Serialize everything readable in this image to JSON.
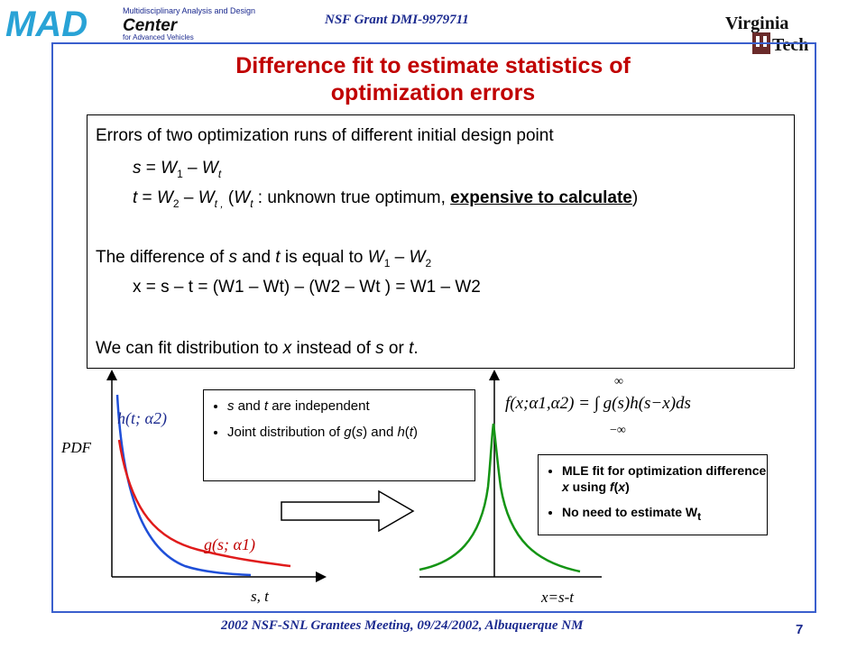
{
  "header": {
    "grant": "NSF Grant DMI-9979711",
    "logo_left": {
      "letters": "MAD",
      "line1": "Multidisciplinary Analysis and Design",
      "line2": "Center",
      "line3": "for Advanced Vehicles"
    },
    "logo_right": {
      "line1": "Virginia",
      "line2": "Tech"
    }
  },
  "title": {
    "line1": "Difference fit to estimate statistics of",
    "line2": "optimization errors"
  },
  "textbox": {
    "l1": "Errors of two optimization runs of different initial design point",
    "l2": {
      "a": "s",
      "b": " = ",
      "c": "W",
      "d": "1",
      "e": " – ",
      "f": "W",
      "g": "t"
    },
    "l3": {
      "a": "t",
      "b": " = ",
      "c": "W",
      "d": "2",
      "e": " – ",
      "f": "W",
      "g": "t ,",
      "h": "  (",
      "i": "W",
      "j": "t",
      "k": " : unknown true optimum, ",
      "l": "expensive to calculate",
      "m": ")"
    },
    "l4": {
      "a": "The difference of ",
      "b": "s",
      "c": " and ",
      "d": "t",
      "e": " is equal to ",
      "f": "W",
      "g": "1",
      "h": " – ",
      "i": "W",
      "j": "2"
    },
    "l5": "x = s – t = (W1 – Wt) – (W2 – Wt ) = W1 – W2",
    "l6": {
      "a": "We can fit distribution to ",
      "b": "x",
      "c": " instead of ",
      "d": "s",
      "e": " or ",
      "f": "t",
      "g": "."
    }
  },
  "bullets_left": {
    "b1": {
      "a": "s",
      "b": " and ",
      "c": "t",
      "d": " are independent"
    },
    "b2": {
      "a": "Joint distribution of ",
      "b": "g",
      "c": "(",
      "d": "s",
      "e": ") and ",
      "f": "h",
      "g": "(",
      "h": "t",
      "i": ")"
    }
  },
  "bullets_right": {
    "b1": {
      "a": "MLE fit for optimization difference ",
      "b": "x",
      "c": " using ",
      "d": "f",
      "e": "(",
      "f": "x",
      "g": ")"
    },
    "b2": {
      "a": "No need to estimate W",
      "b": "t"
    }
  },
  "plot_left": {
    "ylabel": "PDF",
    "xlabel": "s, t",
    "h_label": "h(t; α2)",
    "g_label": "g(s; α1)",
    "colors": {
      "h": "#1f4fd8",
      "g": "#e01b1b"
    }
  },
  "plot_right": {
    "xlabel": "x=s-t",
    "formula": "f(x;α1,α2) = ∫ g(s)h(s−x)ds",
    "lim_top": "∞",
    "lim_bottom": "−∞",
    "color": "#149414"
  },
  "footer": {
    "meeting": "2002 NSF-SNL Grantees Meeting, 09/24/2002, Albuquerque NM",
    "page": "7"
  }
}
